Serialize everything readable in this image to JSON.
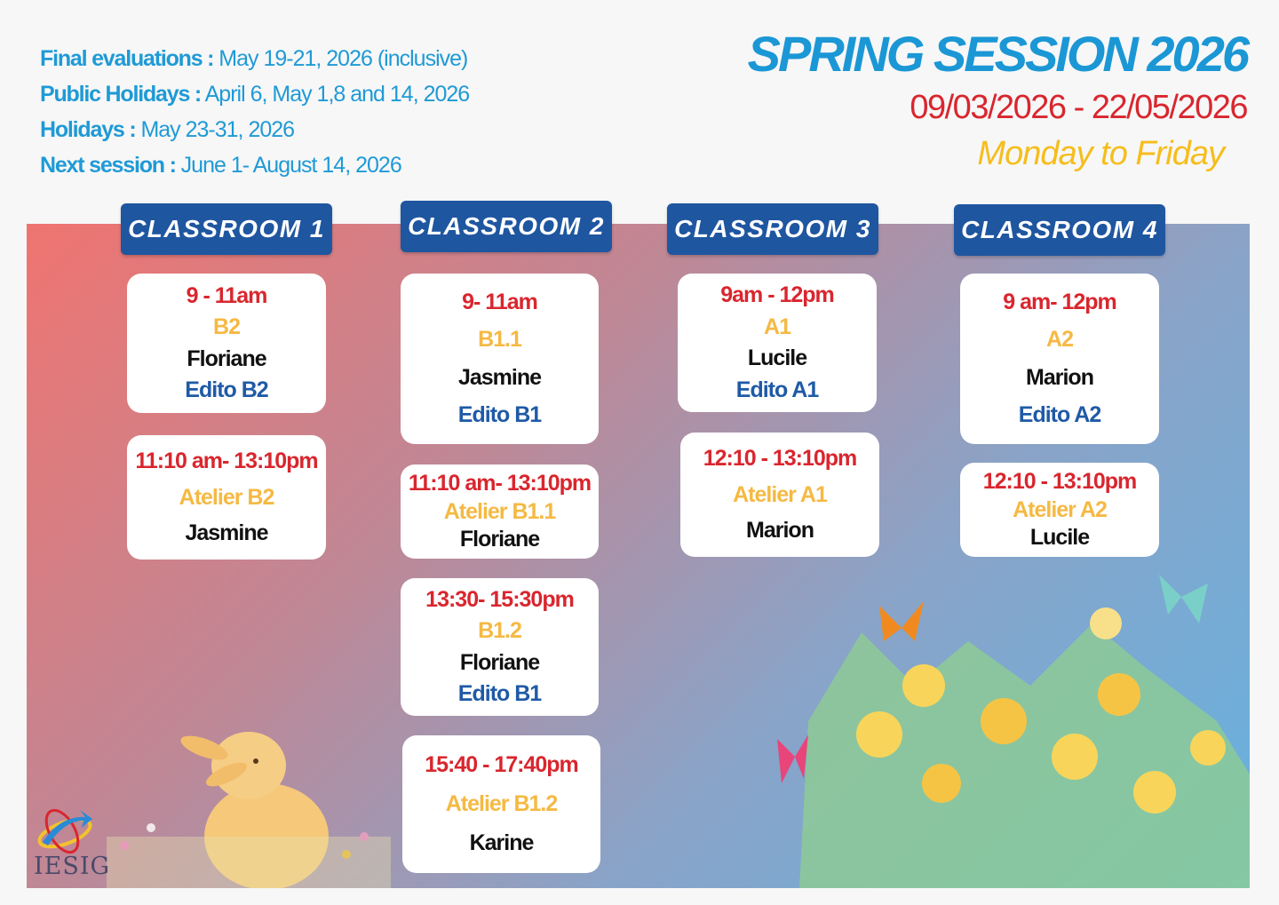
{
  "info": [
    {
      "label": "Final evaluations :",
      "value": "May 19-21, 2026 (inclusive)"
    },
    {
      "label": "Public Holidays :",
      "value": "April 6, May 1,8 and 14, 2026"
    },
    {
      "label": "Holidays :",
      "value": "May 23-31, 2026"
    },
    {
      "label": "Next session :",
      "value": "June 1- August 14, 2026"
    }
  ],
  "header": {
    "title": "SPRING SESSION 2026",
    "dates": "09/03/2026 - 22/05/2026",
    "days": "Monday to Friday"
  },
  "logo": {
    "text": "IESIG"
  },
  "colors": {
    "title": "#1b97d5",
    "time": "#d9262e",
    "level": "#f5b943",
    "book": "#1f5aa6",
    "classroom": "#1f56a0"
  },
  "classrooms": [
    {
      "name": "CLASSROOM 1",
      "slots": [
        {
          "time": "9 - 11am",
          "level": "B2",
          "teacher": "Floriane",
          "book": "Edito B2"
        },
        {
          "time": "11:10 am- 13:10pm",
          "level": "Atelier B2",
          "teacher": "Jasmine"
        }
      ]
    },
    {
      "name": "CLASSROOM 2",
      "slots": [
        {
          "time": "9- 11am",
          "level": "B1.1",
          "teacher": "Jasmine",
          "book": "Edito B1"
        },
        {
          "time": "11:10 am- 13:10pm",
          "level": "Atelier B1.1",
          "teacher": "Floriane"
        },
        {
          "time": "13:30- 15:30pm",
          "level": "B1.2",
          "teacher": "Floriane",
          "book": "Edito B1"
        },
        {
          "time": "15:40 - 17:40pm",
          "level": "Atelier B1.2",
          "teacher": "Karine"
        }
      ]
    },
    {
      "name": "CLASSROOM 3",
      "slots": [
        {
          "time": "9am - 12pm",
          "level": "A1",
          "teacher": "Lucile",
          "book": "Edito A1"
        },
        {
          "time": "12:10 - 13:10pm",
          "level": "Atelier A1",
          "teacher": "Marion"
        }
      ]
    },
    {
      "name": "CLASSROOM 4",
      "slots": [
        {
          "time": "9 am- 12pm",
          "level": "A2",
          "teacher": "Marion",
          "book": "Edito A2"
        },
        {
          "time": "12:10 - 13:10pm",
          "level": "Atelier A2",
          "teacher": "Lucile"
        }
      ]
    }
  ]
}
